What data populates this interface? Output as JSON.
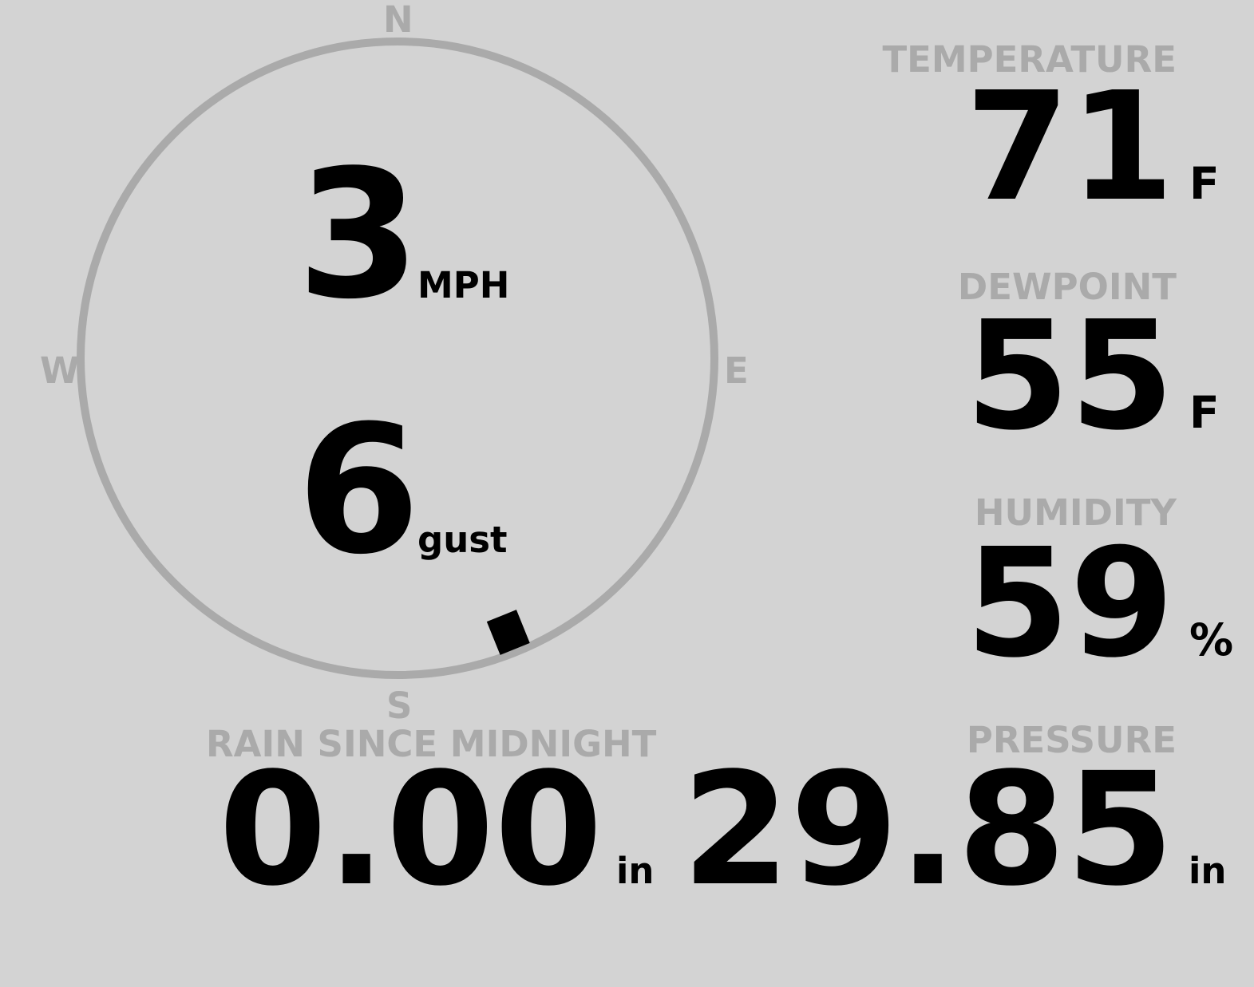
{
  "colors": {
    "background": "#d3d3d3",
    "label": "#aaaaaa",
    "value": "#000000",
    "compass_ring": "#aaaaaa"
  },
  "wind": {
    "compass": {
      "n": "N",
      "e": "E",
      "s": "S",
      "w": "W"
    },
    "direction_deg": 158,
    "speed": "3",
    "speed_unit": "MPH",
    "gust": "6",
    "gust_unit": "gust"
  },
  "temperature": {
    "label": "TEMPERATURE",
    "value": "71",
    "unit": "F"
  },
  "dewpoint": {
    "label": "DEWPOINT",
    "value": "55",
    "unit": "F"
  },
  "humidity": {
    "label": "HUMIDITY",
    "value": "59",
    "unit": "%"
  },
  "rain": {
    "label": "RAIN SINCE MIDNIGHT",
    "value": "0.00",
    "unit": "in"
  },
  "pressure": {
    "label": "PRESSURE",
    "value": "29.85",
    "unit": "in"
  }
}
